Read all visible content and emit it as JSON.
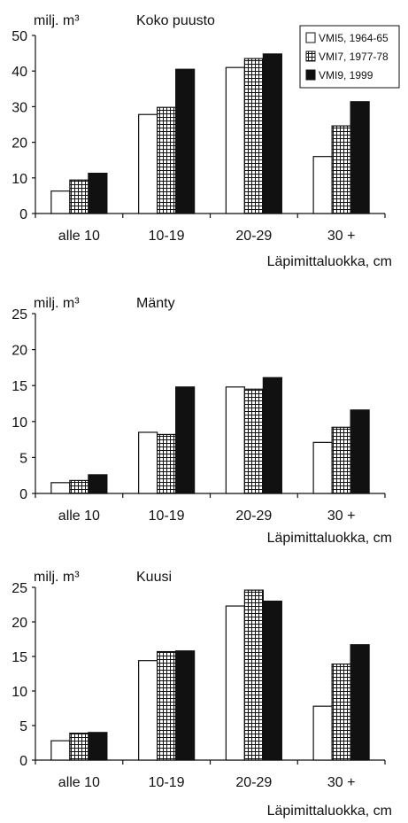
{
  "chart_data": [
    {
      "type": "bar",
      "title": "Koko puusto",
      "ylabel": "milj. m³",
      "xlabel": "Läpimittaluokka, cm",
      "ylim": [
        0,
        50
      ],
      "yticks": [
        0,
        10,
        20,
        30,
        40,
        50
      ],
      "categories": [
        "alle 10",
        "10-19",
        "20-29",
        "30 +"
      ],
      "legend": {
        "placement": "top-right"
      },
      "series": [
        {
          "name": "VMI5, 1964-65",
          "values": [
            6.3,
            27.8,
            41.0,
            16.0
          ]
        },
        {
          "name": "VMI7, 1977-78",
          "values": [
            9.4,
            29.8,
            43.5,
            24.6
          ]
        },
        {
          "name": "VMI9, 1999",
          "values": [
            11.3,
            40.5,
            44.8,
            31.4
          ]
        }
      ]
    },
    {
      "type": "bar",
      "title": "Mänty",
      "ylabel": "milj. m³",
      "xlabel": "Läpimittaluokka, cm",
      "ylim": [
        0,
        25
      ],
      "yticks": [
        0,
        5,
        10,
        15,
        20,
        25
      ],
      "categories": [
        "alle 10",
        "10-19",
        "20-29",
        "30 +"
      ],
      "series": [
        {
          "name": "VMI5, 1964-65",
          "values": [
            1.5,
            8.5,
            14.8,
            7.1
          ]
        },
        {
          "name": "VMI7, 1977-78",
          "values": [
            1.8,
            8.2,
            14.5,
            9.2
          ]
        },
        {
          "name": "VMI9, 1999",
          "values": [
            2.6,
            14.8,
            16.1,
            11.6
          ]
        }
      ]
    },
    {
      "type": "bar",
      "title": "Kuusi",
      "ylabel": "milj. m³",
      "xlabel": "Läpimittaluokka, cm",
      "ylim": [
        0,
        25
      ],
      "yticks": [
        0,
        5,
        10,
        15,
        20,
        25
      ],
      "categories": [
        "alle 10",
        "10-19",
        "20-29",
        "30 +"
      ],
      "series": [
        {
          "name": "VMI5, 1964-65",
          "values": [
            2.8,
            14.4,
            22.3,
            7.8
          ]
        },
        {
          "name": "VMI7, 1977-78",
          "values": [
            3.9,
            15.7,
            24.6,
            13.9
          ]
        },
        {
          "name": "VMI9, 1999",
          "values": [
            4.0,
            15.8,
            23.0,
            16.7
          ]
        }
      ]
    }
  ]
}
